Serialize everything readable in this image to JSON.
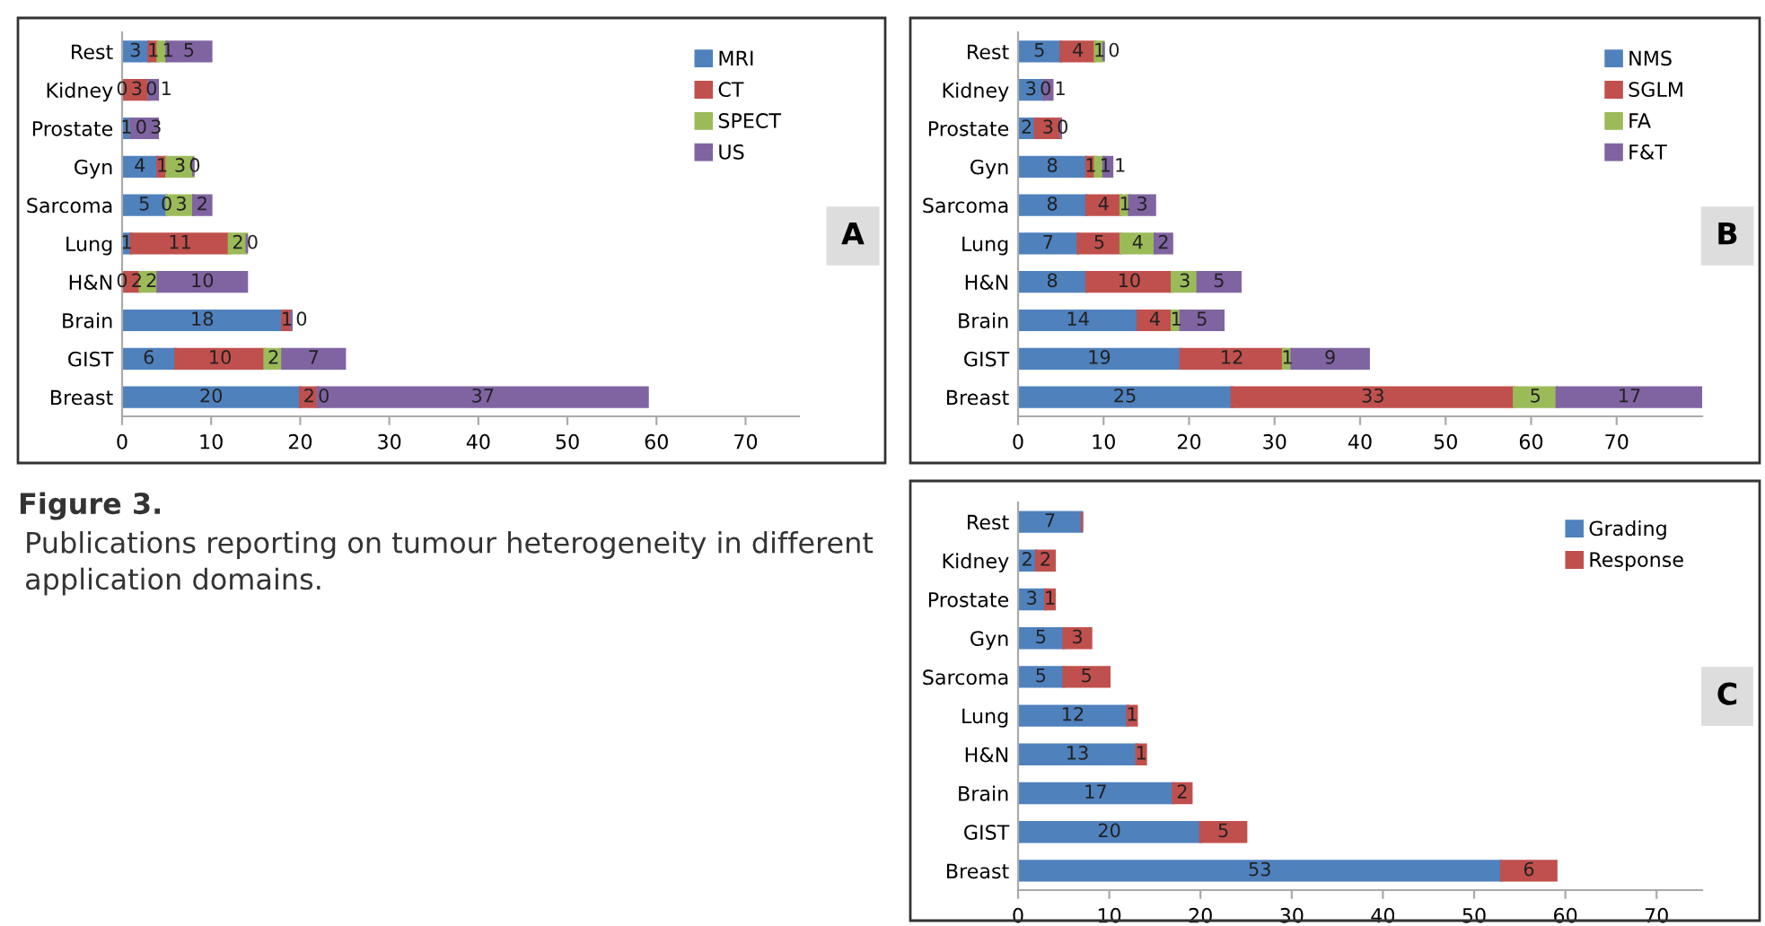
{
  "chart_data": [
    {
      "type": "bar",
      "orientation": "horizontal",
      "stacked": true,
      "categories": [
        "Rest",
        "Kidney",
        "Prostate",
        "Gyn",
        "Sarcoma",
        "Lung",
        "H&N",
        "Brain",
        "GIST",
        "Breast"
      ],
      "xlim": [
        0,
        76
      ],
      "xticks": [
        0,
        10,
        20,
        30,
        40,
        50,
        60,
        70
      ],
      "legend": "top right",
      "grid": false,
      "annotations": [
        "A",
        "Figure 3.",
        "Publications reporting on tumour heterogeneity in different application domains."
      ],
      "series": [
        {
          "name": "MRI",
          "color": "#4f81bd",
          "values": [
            3,
            0,
            1,
            4,
            5,
            1,
            0,
            18,
            6,
            20
          ],
          "value_labels": [
            "3",
            "0",
            "1",
            "4",
            "5",
            "1",
            "0",
            "18",
            "6",
            "20"
          ]
        },
        {
          "name": "CT",
          "color": "#c0504d",
          "values": [
            1,
            3,
            0,
            1,
            0,
            11,
            2,
            1,
            10,
            2
          ],
          "value_labels": [
            "1",
            "3",
            "0",
            "1",
            "0",
            "11",
            "2",
            "1",
            "10",
            "2"
          ]
        },
        {
          "name": "SPECT",
          "color": "#9bbb59",
          "values": [
            1,
            0,
            0,
            3,
            3,
            2,
            2,
            0,
            2,
            0
          ],
          "value_labels": [
            "1",
            "0",
            null,
            "3",
            "3",
            "2",
            "2",
            "0",
            "2",
            "0"
          ]
        },
        {
          "name": "US",
          "color": "#8064a2",
          "values": [
            5,
            1,
            3,
            0,
            2,
            0,
            10,
            0,
            7,
            37
          ],
          "value_labels": [
            "5",
            "1",
            "3",
            "0",
            "2",
            "0",
            "10",
            null,
            "7",
            "37"
          ]
        }
      ]
    },
    {
      "type": "bar",
      "orientation": "horizontal",
      "stacked": true,
      "categories": [
        "Rest",
        "Kidney",
        "Prostate",
        "Gyn",
        "Sarcoma",
        "Lung",
        "H&N",
        "Brain",
        "GIST",
        "Breast"
      ],
      "xlim": [
        0,
        80
      ],
      "xticks": [
        0,
        10,
        20,
        30,
        40,
        50,
        60,
        70
      ],
      "legend": "top right",
      "grid": false,
      "annotations": [
        "B"
      ],
      "series": [
        {
          "name": "NMS",
          "color": "#4f81bd",
          "values": [
            5,
            3,
            2,
            8,
            8,
            7,
            8,
            14,
            19,
            25
          ],
          "value_labels": [
            "5",
            "3",
            "2",
            "8",
            "8",
            "7",
            "8",
            "14",
            "19",
            "25"
          ]
        },
        {
          "name": "SGLM",
          "color": "#c0504d",
          "values": [
            4,
            0,
            3,
            1,
            4,
            5,
            10,
            4,
            12,
            33
          ],
          "value_labels": [
            "4",
            "0",
            "3",
            "1",
            "4",
            "5",
            "10",
            "4",
            "12",
            "33"
          ]
        },
        {
          "name": "FA",
          "color": "#9bbb59",
          "values": [
            1,
            0,
            0,
            1,
            1,
            4,
            3,
            1,
            1,
            5
          ],
          "value_labels": [
            "1",
            null,
            "0",
            "1",
            "1",
            "4",
            "3",
            "1",
            "1",
            "5"
          ]
        },
        {
          "name": "F&T",
          "color": "#8064a2",
          "values": [
            0,
            1,
            0,
            1,
            3,
            2,
            5,
            5,
            9,
            17
          ],
          "value_labels": [
            "0",
            "1",
            null,
            "1",
            "3",
            "2",
            "5",
            "5",
            "9",
            "17"
          ]
        }
      ]
    },
    {
      "type": "bar",
      "orientation": "horizontal",
      "stacked": true,
      "categories": [
        "Rest",
        "Kidney",
        "Prostate",
        "Gyn",
        "Sarcoma",
        "Lung",
        "H&N",
        "Brain",
        "GIST",
        "Breast"
      ],
      "xlim": [
        0,
        75
      ],
      "xticks": [
        0,
        10,
        20,
        30,
        40,
        50,
        60,
        70
      ],
      "legend": "top right",
      "grid": false,
      "annotations": [
        "C"
      ],
      "series": [
        {
          "name": "Grading",
          "color": "#4f81bd",
          "values": [
            7,
            2,
            3,
            5,
            5,
            12,
            13,
            17,
            20,
            53
          ],
          "value_labels": [
            "7",
            "2",
            "3",
            "5",
            "5",
            "12",
            "13",
            "17",
            "20",
            "53"
          ]
        },
        {
          "name": "Response",
          "color": "#c0504d",
          "values": [
            0,
            2,
            1,
            3,
            5,
            1,
            1,
            2,
            5,
            6
          ],
          "value_labels": [
            null,
            "2",
            "1",
            "3",
            "5",
            "1",
            "1",
            "2",
            "5",
            "6"
          ]
        }
      ]
    }
  ]
}
